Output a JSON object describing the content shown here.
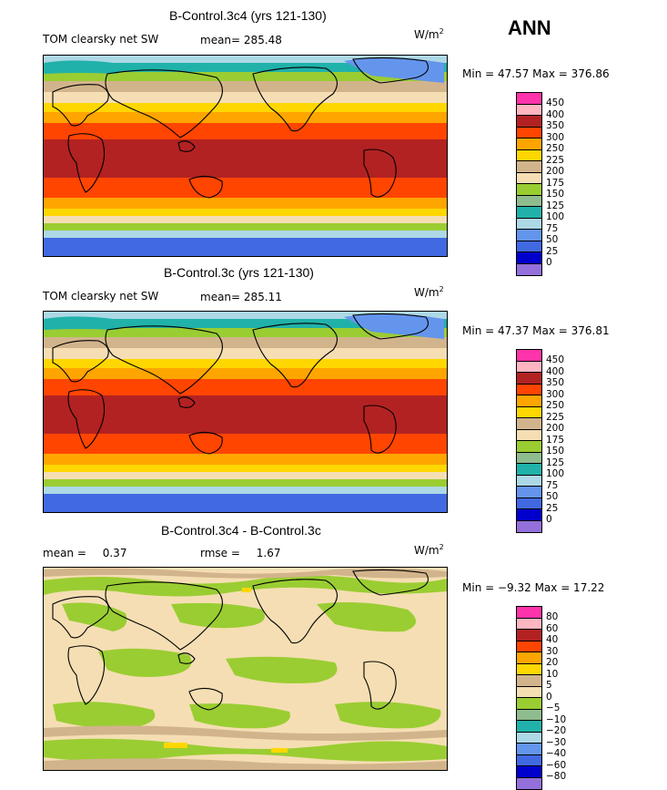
{
  "season": "ANN",
  "palette": [
    "#ff33aa",
    "#ffb6c1",
    "#b22222",
    "#ff4500",
    "#ffa500",
    "#ffd700",
    "#d2b48c",
    "#f5deb3",
    "#9acd32",
    "#8fbc8f",
    "#20b2aa",
    "#add8e6",
    "#6495ed",
    "#4169e1",
    "#0000cd",
    "#9370db"
  ],
  "panels": [
    {
      "title": "B-Control.3c4 (yrs 121-130)",
      "left_label": "TOM clearsky net SW",
      "stat1_label": "mean=",
      "stat1_value": "285.48",
      "units": "W/m",
      "units_exp": "2",
      "minmax": "Min =  47.57 Max = 376.86",
      "levels": [
        "450",
        "400",
        "350",
        "300",
        "250",
        "225",
        "200",
        "175",
        "150",
        "125",
        "100",
        "75",
        "50",
        "25",
        "0"
      ]
    },
    {
      "title": "B-Control.3c (yrs 121-130)",
      "left_label": "TOM clearsky net SW",
      "stat1_label": "mean=",
      "stat1_value": "285.11",
      "units": "W/m",
      "units_exp": "2",
      "minmax": "Min =  47.37 Max = 376.81",
      "levels": [
        "450",
        "400",
        "350",
        "300",
        "250",
        "225",
        "200",
        "175",
        "150",
        "125",
        "100",
        "75",
        "50",
        "25",
        "0"
      ]
    },
    {
      "title": "B-Control.3c4 - B-Control.3c",
      "left_label": "mean =",
      "left_value": "0.37",
      "stat1_label": "rmse =",
      "stat1_value": "1.67",
      "units": "W/m",
      "units_exp": "2",
      "minmax": "Min = −9.32 Max =  17.22",
      "levels": [
        "80",
        "60",
        "40",
        "30",
        "20",
        "10",
        "5",
        "0",
        "−5",
        "−10",
        "−20",
        "−30",
        "−40",
        "−60",
        "−80"
      ]
    }
  ]
}
